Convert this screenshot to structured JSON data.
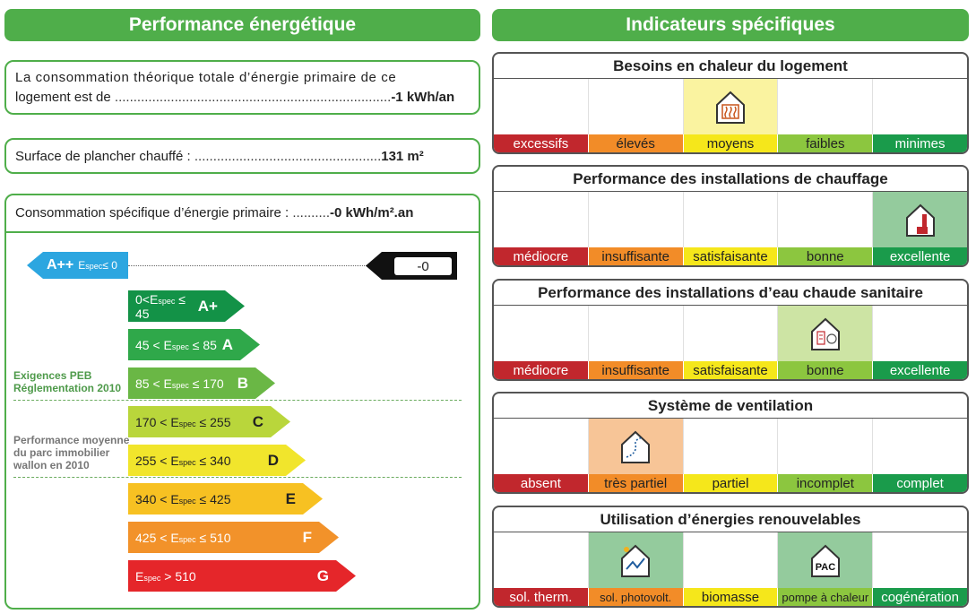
{
  "left": {
    "header": "Performance énergétique",
    "total": {
      "line1": "La consommation théorique totale d’énergie primaire de ce",
      "line2_prefix": "logement est de ",
      "dots": "..........................................................................",
      "value": "-1 kWh/an"
    },
    "surface": {
      "label": "Surface de plancher chauffé : ",
      "dots": "..................................................",
      "value": "131 m²"
    },
    "specific": {
      "label": "Consommation spécifique d’énergie primaire : ",
      "dots": "..........",
      "value": "-0 kWh/m².an"
    },
    "appp": {
      "class": "A++",
      "esub": "spec",
      "cond": "≤ 0"
    },
    "indicator_value": "-0",
    "labels": {
      "peb": [
        "Exigences PEB",
        "Réglementation 2010"
      ],
      "avg": [
        "Performance moyenne",
        "du parc immobilier",
        "wallon en 2010"
      ]
    },
    "classes": [
      {
        "pre": "0<E",
        "sub": "spec",
        "post": "≤ 45",
        "cls": "A+",
        "color": "#139247"
      },
      {
        "pre": "45 < E",
        "sub": "spec",
        "post": "≤ 85",
        "cls": "A",
        "color": "#2fa84a"
      },
      {
        "pre": "85 < E",
        "sub": "spec",
        "post": "≤ 170",
        "cls": "B",
        "color": "#6ab745"
      },
      {
        "pre": "170 < E",
        "sub": "spec",
        "post": "≤ 255",
        "cls": "C",
        "color": "#b9d63b"
      },
      {
        "pre": "255 < E",
        "sub": "spec",
        "post": "≤ 340",
        "cls": "D",
        "color": "#f1e52c"
      },
      {
        "pre": "340 < E",
        "sub": "spec",
        "post": "≤ 425",
        "cls": "E",
        "color": "#f7c122"
      },
      {
        "pre": "425 < E",
        "sub": "spec",
        "post": "≤ 510",
        "cls": "F",
        "color": "#f2922a"
      },
      {
        "pre": "E",
        "sub": "spec",
        "post": "> 510",
        "cls": "G",
        "color": "#e5262a"
      }
    ]
  },
  "right": {
    "header": "Indicateurs spécifiques",
    "indicators": [
      {
        "title": "Besoins en chaleur du logement",
        "scale": [
          "excessifs",
          "élevés",
          "moyens",
          "faibles",
          "minimes"
        ],
        "active": [
          2
        ],
        "active_color": "#faf3a0",
        "icons": [
          "heat-radiator-icon"
        ]
      },
      {
        "title": "Performance des installations de chauffage",
        "scale": [
          "médiocre",
          "insuffisante",
          "satisfaisante",
          "bonne",
          "excellente"
        ],
        "active": [
          4
        ],
        "active_color": "#94cb9d",
        "icons": [
          "boiler-icon"
        ]
      },
      {
        "title": "Performance des installations d’eau chaude sanitaire",
        "scale": [
          "médiocre",
          "insuffisante",
          "satisfaisante",
          "bonne",
          "excellente"
        ],
        "active": [
          3
        ],
        "active_color": "#cde4a4",
        "icons": [
          "water-heater-icon"
        ]
      },
      {
        "title": "Système de ventilation",
        "scale": [
          "absent",
          "très partiel",
          "partiel",
          "incomplet",
          "complet"
        ],
        "active": [
          1
        ],
        "active_color": "#f7c597",
        "icons": [
          "ventilation-icon"
        ]
      },
      {
        "title": "Utilisation d’énergies renouvelables",
        "scale": [
          "sol. therm.",
          "sol. photovolt.",
          "biomasse",
          "pompe à chaleur",
          "cogénération"
        ],
        "active": [
          1,
          3
        ],
        "active_color": "#94cb9d",
        "icons": [
          "solar-photovoltaic-icon",
          "heat-pump-icon"
        ],
        "pac_label": "PAC"
      }
    ],
    "scale_colors": [
      "#c1272d",
      "#f28c28",
      "#f5e71b",
      "#8cc63f",
      "#1a9b4b"
    ]
  }
}
